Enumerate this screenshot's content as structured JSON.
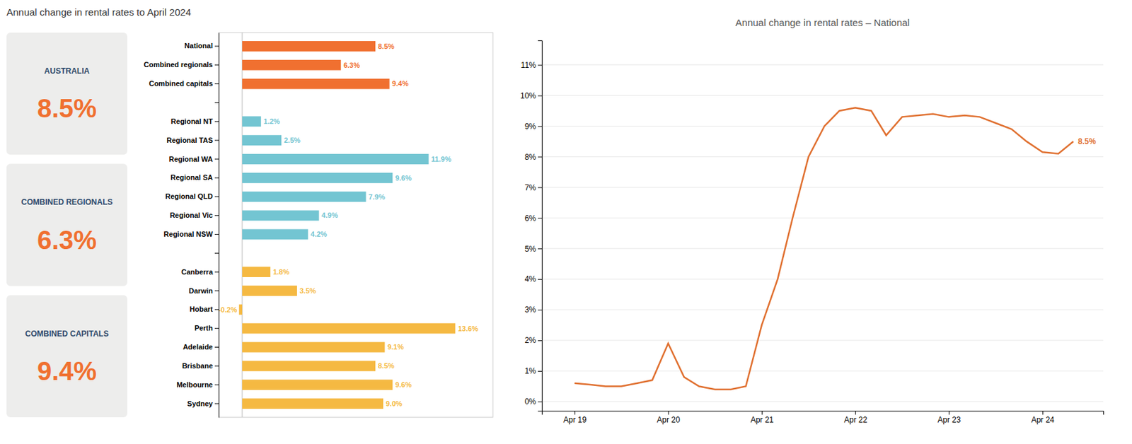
{
  "chart_data": [
    {
      "type": "kpi",
      "title": "Annual change in rental rates to April 2024",
      "categories": [
        "AUSTRALIA",
        "COMBINED REGIONALS",
        "COMBINED CAPITALS"
      ],
      "values": [
        8.5,
        6.3,
        9.4
      ],
      "value_labels": [
        "8.5%",
        "6.3%",
        "9.4%"
      ],
      "color": "#f07030"
    },
    {
      "type": "bar",
      "orientation": "horizontal",
      "categories": [
        "National",
        "Combined regionals",
        "Combined capitals",
        null,
        "Regional NT",
        "Regional TAS",
        "Regional WA",
        "Regional SA",
        "Regional QLD",
        "Regional Vic",
        "Regional NSW",
        null,
        "Canberra",
        "Darwin",
        "Hobart",
        "Perth",
        "Adelaide",
        "Brisbane",
        "Melbourne",
        "Sydney"
      ],
      "values": [
        8.5,
        6.3,
        9.4,
        null,
        1.2,
        2.5,
        11.9,
        9.6,
        7.9,
        4.9,
        4.2,
        null,
        1.8,
        3.5,
        -0.2,
        13.6,
        9.1,
        8.5,
        9.6,
        9.0
      ],
      "value_labels": [
        "8.5%",
        "6.3%",
        "9.4%",
        null,
        "1.2%",
        "2.5%",
        "11.9%",
        "9.6%",
        "7.9%",
        "4.9%",
        "4.2%",
        null,
        "1.8%",
        "3.5%",
        "-0.2%",
        "13.6%",
        "9.1%",
        "8.5%",
        "9.6%",
        "9.0%"
      ],
      "colors": [
        "#f07030",
        "#f07030",
        "#f07030",
        "#ffffff",
        "#73c5d2",
        "#73c5d2",
        "#73c5d2",
        "#73c5d2",
        "#73c5d2",
        "#73c5d2",
        "#73c5d2",
        "#ffffff",
        "#f5b942",
        "#f5b942",
        "#f5b942",
        "#f5b942",
        "#f5b942",
        "#f5b942",
        "#f5b942",
        "#f5b942"
      ],
      "xlim": [
        -1.5,
        16
      ],
      "data_labels": true,
      "tick_labels": "y"
    },
    {
      "type": "line",
      "title": "Annual change in rental rates – National",
      "x": [
        2019.0,
        2019.17,
        2019.33,
        2019.5,
        2019.67,
        2019.83,
        2020.0,
        2020.17,
        2020.33,
        2020.5,
        2020.67,
        2020.83,
        2021.0,
        2021.17,
        2021.33,
        2021.5,
        2021.67,
        2021.83,
        2022.0,
        2022.17,
        2022.33,
        2022.5,
        2022.67,
        2022.83,
        2023.0,
        2023.17,
        2023.33,
        2023.5,
        2023.67,
        2023.83,
        2024.0,
        2024.17,
        2024.33
      ],
      "values": [
        0.6,
        0.55,
        0.5,
        0.5,
        0.6,
        0.7,
        1.9,
        0.8,
        0.5,
        0.4,
        0.4,
        0.5,
        2.5,
        4.0,
        6.0,
        8.0,
        9.0,
        9.5,
        9.6,
        9.5,
        8.7,
        9.3,
        9.35,
        9.4,
        9.3,
        9.35,
        9.3,
        9.1,
        8.9,
        8.5,
        8.15,
        8.1,
        8.5
      ],
      "color": "#e07030",
      "xlim": [
        2018.65,
        2024.65
      ],
      "xticks": [
        {
          "value": 2019,
          "label": "Apr 19"
        },
        {
          "value": 2020,
          "label": "Apr 20"
        },
        {
          "value": 2021,
          "label": "Apr 21"
        },
        {
          "value": 2022,
          "label": "Apr 22"
        },
        {
          "value": 2023,
          "label": "Apr 23"
        },
        {
          "value": 2024,
          "label": "Apr 24"
        }
      ],
      "ylim": [
        -0.3,
        11.8
      ],
      "yticks": [
        {
          "value": 0,
          "label": "0%"
        },
        {
          "value": 1,
          "label": "1%"
        },
        {
          "value": 2,
          "label": "2%"
        },
        {
          "value": 3,
          "label": "3%"
        },
        {
          "value": 4,
          "label": "4%"
        },
        {
          "value": 5,
          "label": "5%"
        },
        {
          "value": 6,
          "label": "6%"
        },
        {
          "value": 7,
          "label": "7%"
        },
        {
          "value": 8,
          "label": "8%"
        },
        {
          "value": 9,
          "label": "9%"
        },
        {
          "value": 10,
          "label": "10%"
        },
        {
          "value": 11,
          "label": "11%"
        }
      ],
      "grid": "y",
      "annotations": [
        {
          "text": "8.5%",
          "x": 2024.38,
          "y": 8.5
        }
      ]
    }
  ]
}
